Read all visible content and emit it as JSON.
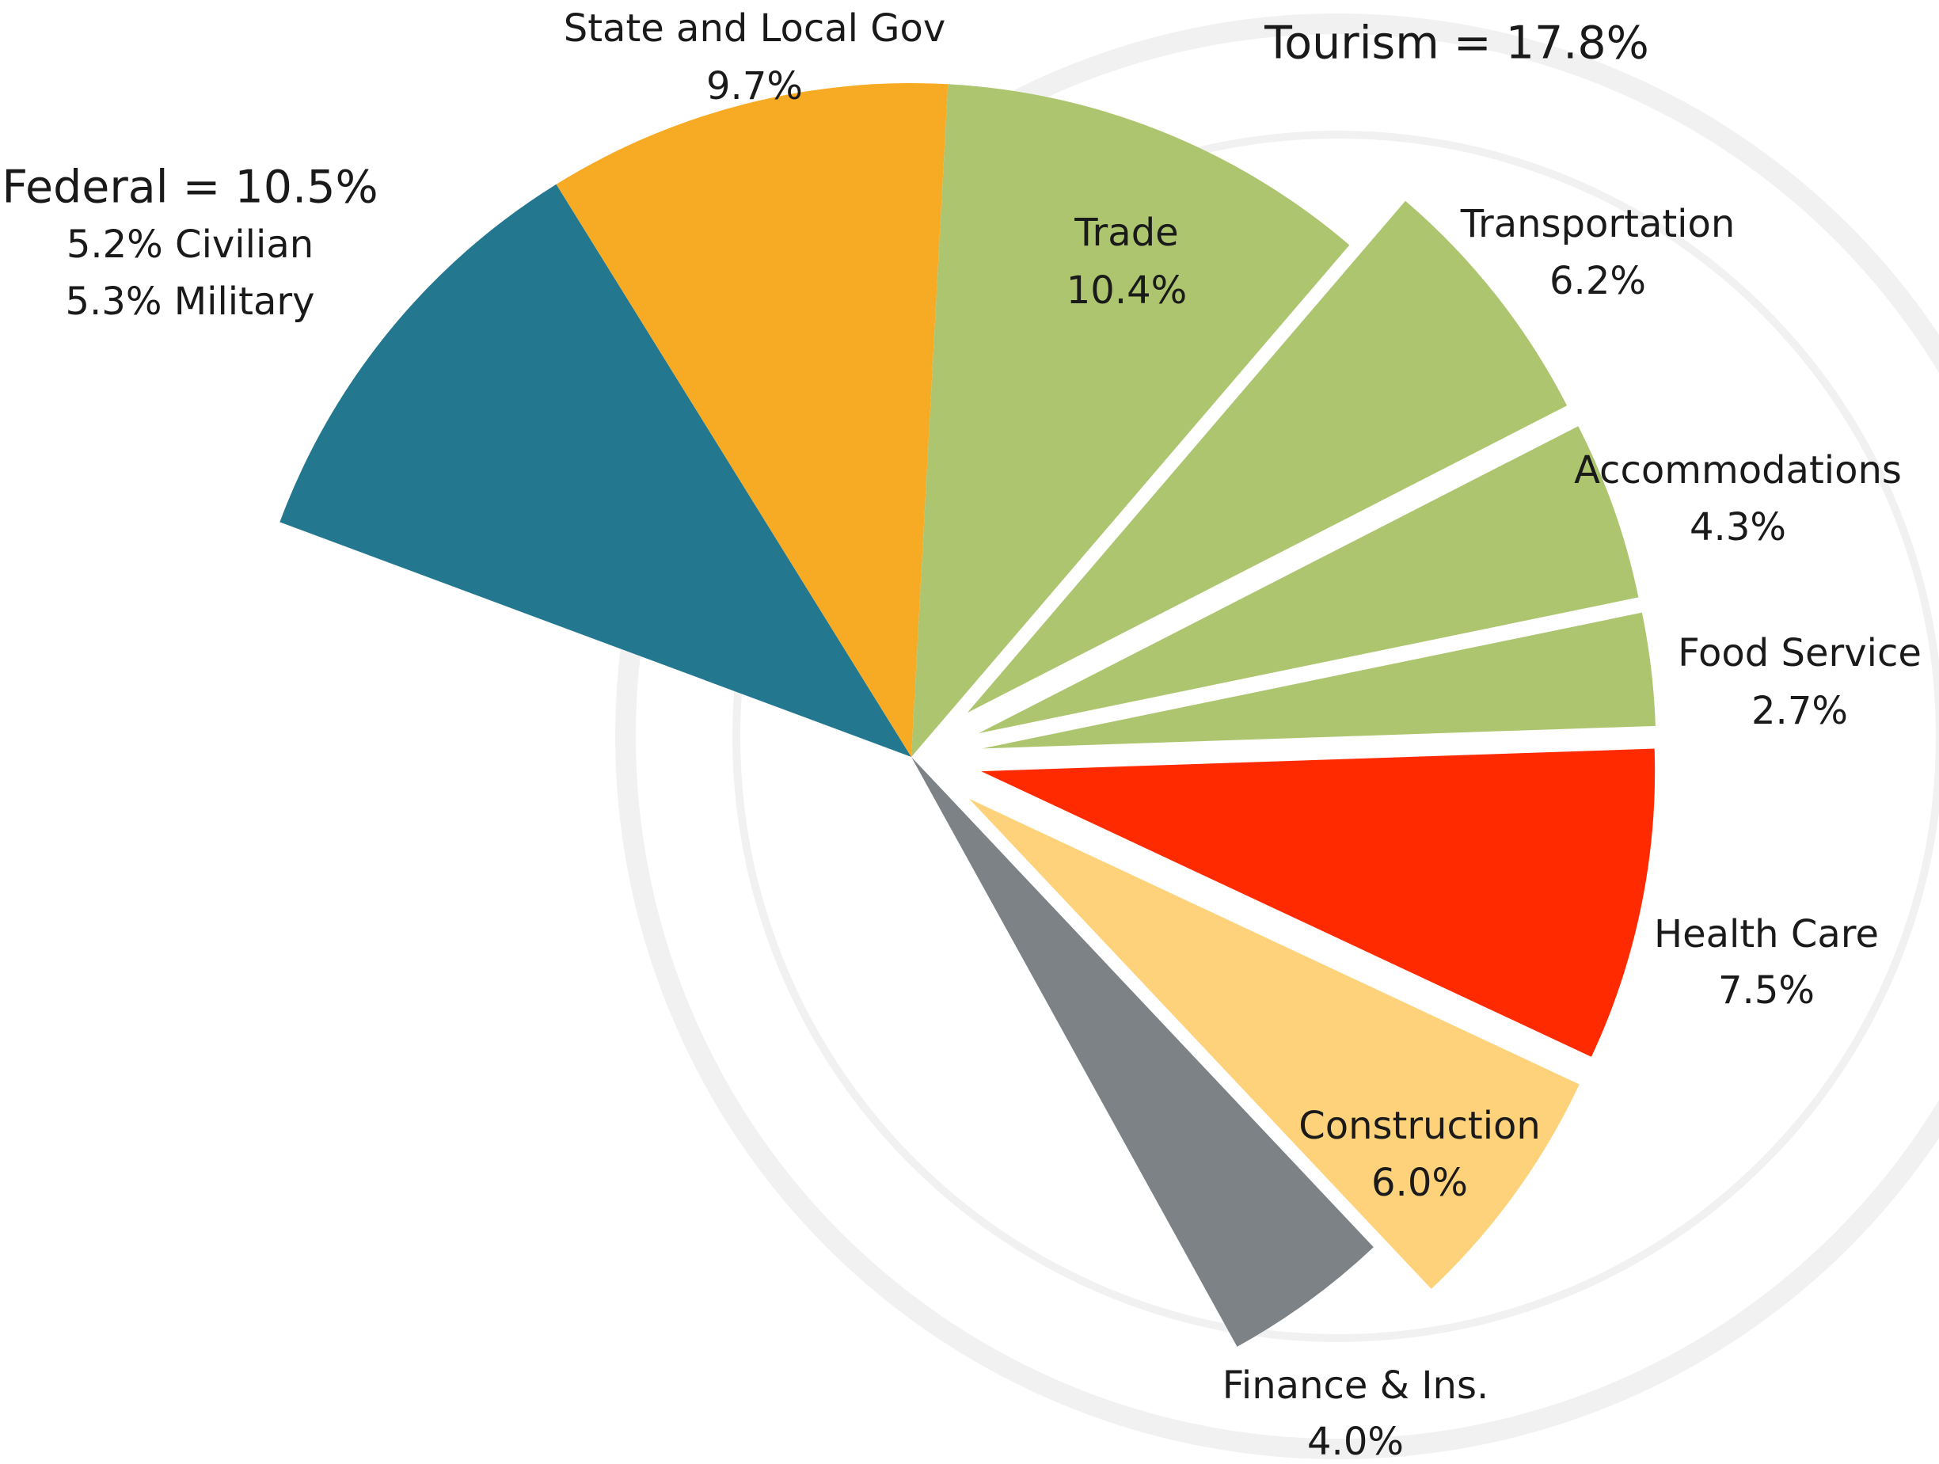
{
  "chart_data": {
    "type": "pie",
    "categories": [
      "Federal = 10.5%",
      "State and Local Gov",
      "Trade",
      "Transportation",
      "Accommodations",
      "Food Service",
      "Health Care",
      "Construction",
      "Finance & Ins."
    ],
    "values": [
      10.5,
      9.7,
      10.4,
      6.2,
      4.3,
      2.7,
      7.5,
      6.0,
      4.0
    ],
    "value_labels": [
      null,
      "9.7%",
      "10.4%",
      "6.2%",
      "4.3%",
      "2.7%",
      "7.5%",
      "6.0%",
      "4.0%"
    ],
    "colors": [
      "#23788f",
      "#f7ab24",
      "#aec56f",
      "#aec56f",
      "#aec56f",
      "#aec56f",
      "#ff2a00",
      "#fed27a",
      "#7c8286"
    ],
    "exploded": [
      false,
      false,
      false,
      true,
      true,
      true,
      true,
      true,
      false
    ],
    "federal_breakdown": [
      "5.2% Civilian",
      "5.3% Military"
    ],
    "group_label": "Tourism = 17.8%"
  }
}
